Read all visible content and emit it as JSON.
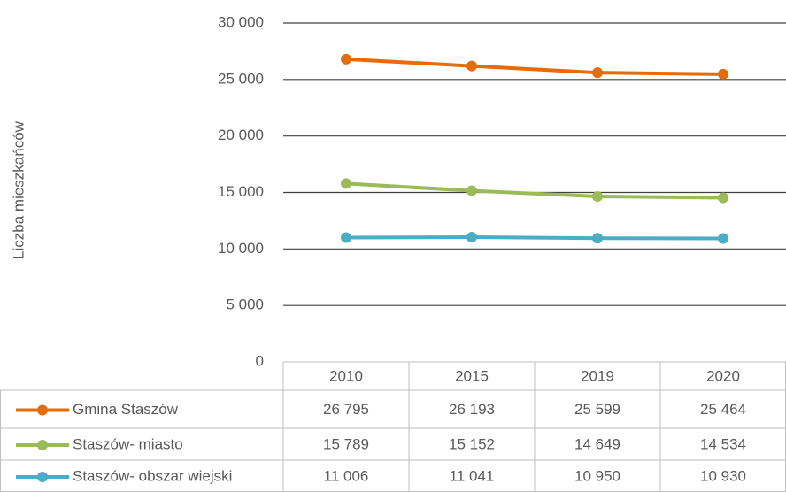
{
  "chart_data": {
    "type": "line",
    "y_label": "Liczba mieszkańców",
    "categories": [
      "2010",
      "2015",
      "2019",
      "2020"
    ],
    "series": [
      {
        "name": "Gmina Staszów",
        "color": "#e46c0a",
        "values": [
          26795,
          26193,
          25599,
          25464
        ],
        "value_labels": [
          "26 795",
          "26 193",
          "25 599",
          "25 464"
        ]
      },
      {
        "name": "Staszów- miasto",
        "color": "#9bbb59",
        "values": [
          15789,
          15152,
          14649,
          14534
        ],
        "value_labels": [
          "15 789",
          "15 152",
          "14 649",
          "14 534"
        ]
      },
      {
        "name": "Staszów- obszar wiejski",
        "color": "#4bacc6",
        "values": [
          11006,
          11041,
          10950,
          10930
        ],
        "value_labels": [
          "11 006",
          "11 041",
          "10 950",
          "10 930"
        ]
      }
    ],
    "ylim": [
      0,
      30000
    ],
    "yticks": [
      {
        "value": 0,
        "label": "0"
      },
      {
        "value": 5000,
        "label": "5 000"
      },
      {
        "value": 10000,
        "label": "10 000"
      },
      {
        "value": 15000,
        "label": "15 000"
      },
      {
        "value": 20000,
        "label": "20 000"
      },
      {
        "value": 25000,
        "label": "25 000"
      },
      {
        "value": 30000,
        "label": "30 000"
      }
    ],
    "grid": true
  }
}
